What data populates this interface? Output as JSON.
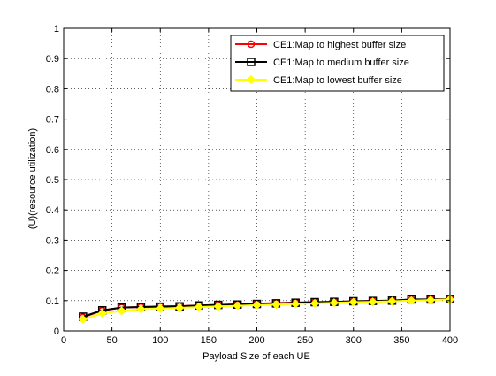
{
  "chart_data": {
    "type": "line",
    "xlabel": "Payload Size of each UE",
    "ylabel": "(U)(resource utilization)",
    "xlim": [
      0,
      400
    ],
    "ylim": [
      0,
      1
    ],
    "x_ticks": [
      0,
      50,
      100,
      150,
      200,
      250,
      300,
      350,
      400
    ],
    "y_ticks": [
      0,
      0.1,
      0.2,
      0.3,
      0.4,
      0.5,
      0.6,
      0.7,
      0.8,
      0.9,
      1
    ],
    "x_tick_labels": [
      "0",
      "50",
      "100",
      "150",
      "200",
      "250",
      "300",
      "350",
      "400"
    ],
    "y_tick_labels": [
      "0",
      "0.1",
      "0.2",
      "0.3",
      "0.4",
      "0.5",
      "0.6",
      "0.7",
      "0.8",
      "0.9",
      "1"
    ],
    "grid": true,
    "legend_position": "top-right",
    "x": [
      20,
      40,
      60,
      80,
      100,
      120,
      140,
      160,
      180,
      200,
      220,
      240,
      260,
      280,
      300,
      320,
      340,
      360,
      380,
      400
    ],
    "series": [
      {
        "name": "CE1:Map to highest buffer size",
        "color": "#ff0000",
        "marker": "circle",
        "values": [
          0.045,
          0.067,
          0.077,
          0.079,
          0.081,
          0.082,
          0.084,
          0.086,
          0.088,
          0.09,
          0.092,
          0.094,
          0.095,
          0.096,
          0.098,
          0.099,
          0.1,
          0.103,
          0.104,
          0.105
        ]
      },
      {
        "name": "CE1:Map to medium buffer size",
        "color": "#000000",
        "marker": "square",
        "values": [
          0.047,
          0.068,
          0.077,
          0.079,
          0.08,
          0.081,
          0.084,
          0.086,
          0.087,
          0.089,
          0.091,
          0.093,
          0.095,
          0.096,
          0.098,
          0.099,
          0.1,
          0.104,
          0.104,
          0.105
        ]
      },
      {
        "name": "CE1:Map to lowest buffer size",
        "color": "#ffff00",
        "marker": "diamond",
        "values": [
          0.038,
          0.058,
          0.066,
          0.072,
          0.074,
          0.076,
          0.079,
          0.081,
          0.083,
          0.085,
          0.087,
          0.089,
          0.091,
          0.093,
          0.095,
          0.096,
          0.098,
          0.1,
          0.102,
          0.104
        ]
      }
    ]
  }
}
